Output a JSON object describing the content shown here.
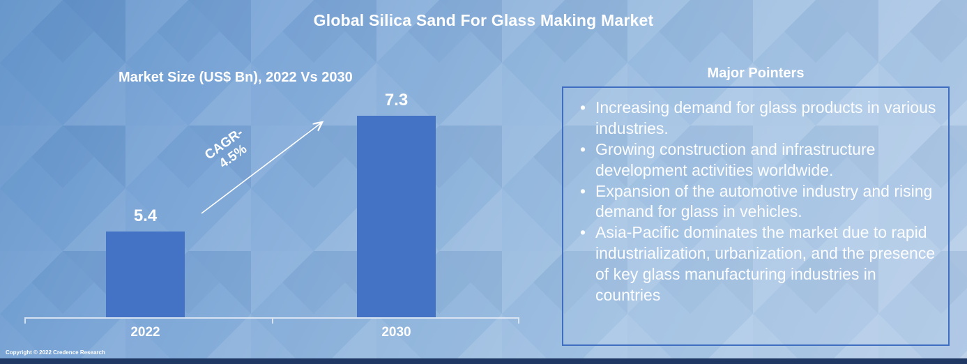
{
  "title": "Global Silica Sand For Glass Making Market",
  "chart": {
    "subtitle": "Market Size (US$ Bn), 2022 Vs 2030",
    "cagr_line1": "CAGR-",
    "cagr_line2": "4.5%"
  },
  "chart_data": {
    "type": "bar",
    "title": "Market Size (US$ Bn), 2022 Vs 2030",
    "categories": [
      "2022",
      "2030"
    ],
    "values": [
      5.4,
      7.3
    ],
    "xlabel": "",
    "ylabel": "Market Size (US$ Bn)",
    "ylim": [
      4,
      8
    ],
    "grid": false,
    "legend": "none",
    "bar_color": "#4472C4",
    "annotations": [
      "CAGR- 4.5%"
    ]
  },
  "pointers": {
    "heading": "Major Pointers",
    "items": [
      "Increasing demand for glass products in various industries.",
      "Growing construction and infrastructure development activities worldwide.",
      "Expansion of the automotive industry and rising demand for glass in vehicles.",
      "Asia-Pacific dominates the market due to rapid industrialization, urbanization, and the presence of key glass manufacturing industries in countries"
    ]
  },
  "footer": {
    "copyright": "Copyright © 2022 Credence Research"
  },
  "colors": {
    "bar": "#4472C4",
    "box_border": "#3f6ec0",
    "bottom_strip": "#1F3864",
    "text": "#FFFFFF"
  }
}
